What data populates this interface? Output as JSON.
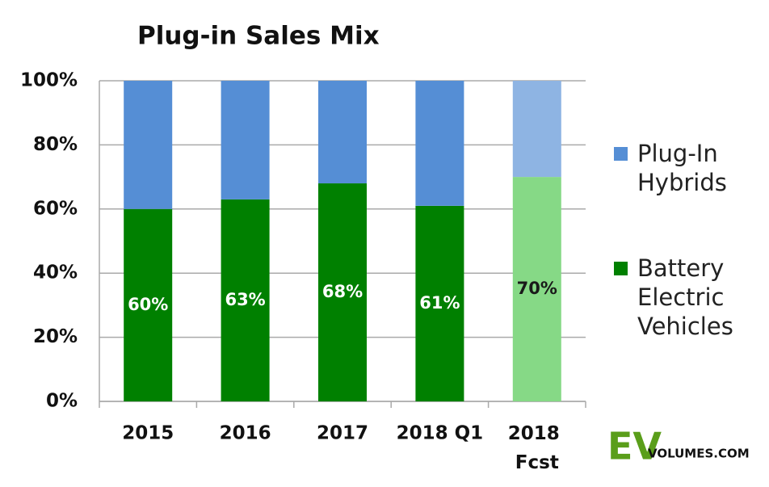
{
  "chart_data": {
    "type": "stacked_bar",
    "title": "Plug-in Sales Mix",
    "categories": [
      "2015",
      "2016",
      "2017",
      "2018 Q1",
      "2018 Fcst"
    ],
    "series": [
      {
        "name": "Battery Electric Vehicles",
        "color": "#008000",
        "colors": [
          "#008000",
          "#008000",
          "#008000",
          "#008000",
          "#86d986"
        ],
        "label_colors": [
          "#ffffff",
          "#ffffff",
          "#ffffff",
          "#ffffff",
          "#1a1a1a"
        ],
        "values": [
          60,
          63,
          68,
          61,
          70
        ],
        "value_labels": [
          "60%",
          "63%",
          "68%",
          "61%",
          "70%"
        ]
      },
      {
        "name": "Plug-In Hybrids",
        "color": "#558ed5",
        "colors": [
          "#558ed5",
          "#558ed5",
          "#558ed5",
          "#558ed5",
          "#8eb4e3"
        ],
        "values": [
          40,
          37,
          32,
          39,
          30
        ]
      }
    ],
    "ylim": [
      0,
      100
    ],
    "yticks": [
      {
        "value": 0,
        "label": "0%"
      },
      {
        "value": 20,
        "label": "20%"
      },
      {
        "value": 40,
        "label": "40%"
      },
      {
        "value": 60,
        "label": "60%"
      },
      {
        "value": 80,
        "label": "80%"
      },
      {
        "value": 100,
        "label": "100%"
      }
    ],
    "grid": true,
    "legend": "right"
  },
  "logo": {
    "ev": "EV",
    "rest": "VOLUMES.COM"
  }
}
